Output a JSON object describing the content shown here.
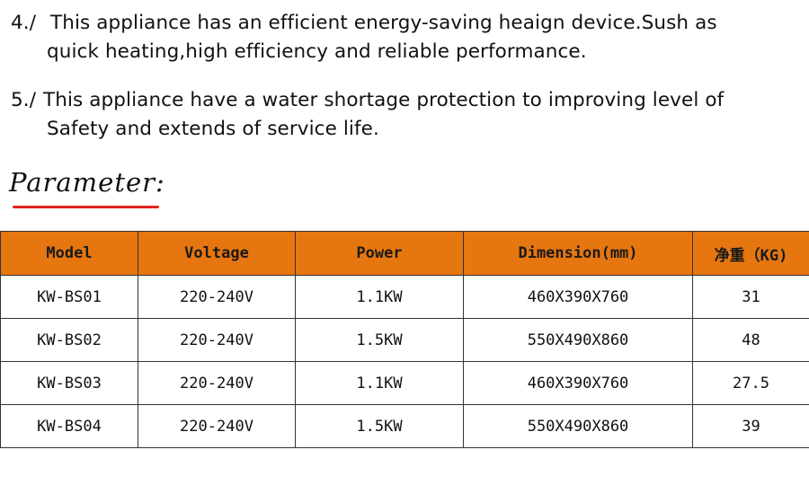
{
  "notes": [
    {
      "number": "4./",
      "line1": "This appliance has an efficient energy-saving heaign device.Sush as",
      "line2": "quick heating,high efficiency and reliable performance."
    },
    {
      "number": "5./",
      "line1": "This appliance have a water shortage protection to improving level of",
      "line2": "Safety and extends of service life."
    }
  ],
  "section": {
    "title": "Parameter:",
    "underline_color": "#e3231b"
  },
  "table": {
    "header_color": "#e6760f",
    "headers": [
      "Model",
      "Voltage",
      "Power",
      "Dimension(mm)",
      "净重（KG)"
    ],
    "rows": [
      [
        "KW-BS01",
        "220-240V",
        "1.1KW",
        "460X390X760",
        "31"
      ],
      [
        "KW-BS02",
        "220-240V",
        "1.5KW",
        "550X490X860",
        "48"
      ],
      [
        "KW-BS03",
        "220-240V",
        "1.1KW",
        "460X390X760",
        "27.5"
      ],
      [
        "KW-BS04",
        "220-240V",
        "1.5KW",
        "550X490X860",
        "39"
      ]
    ]
  }
}
